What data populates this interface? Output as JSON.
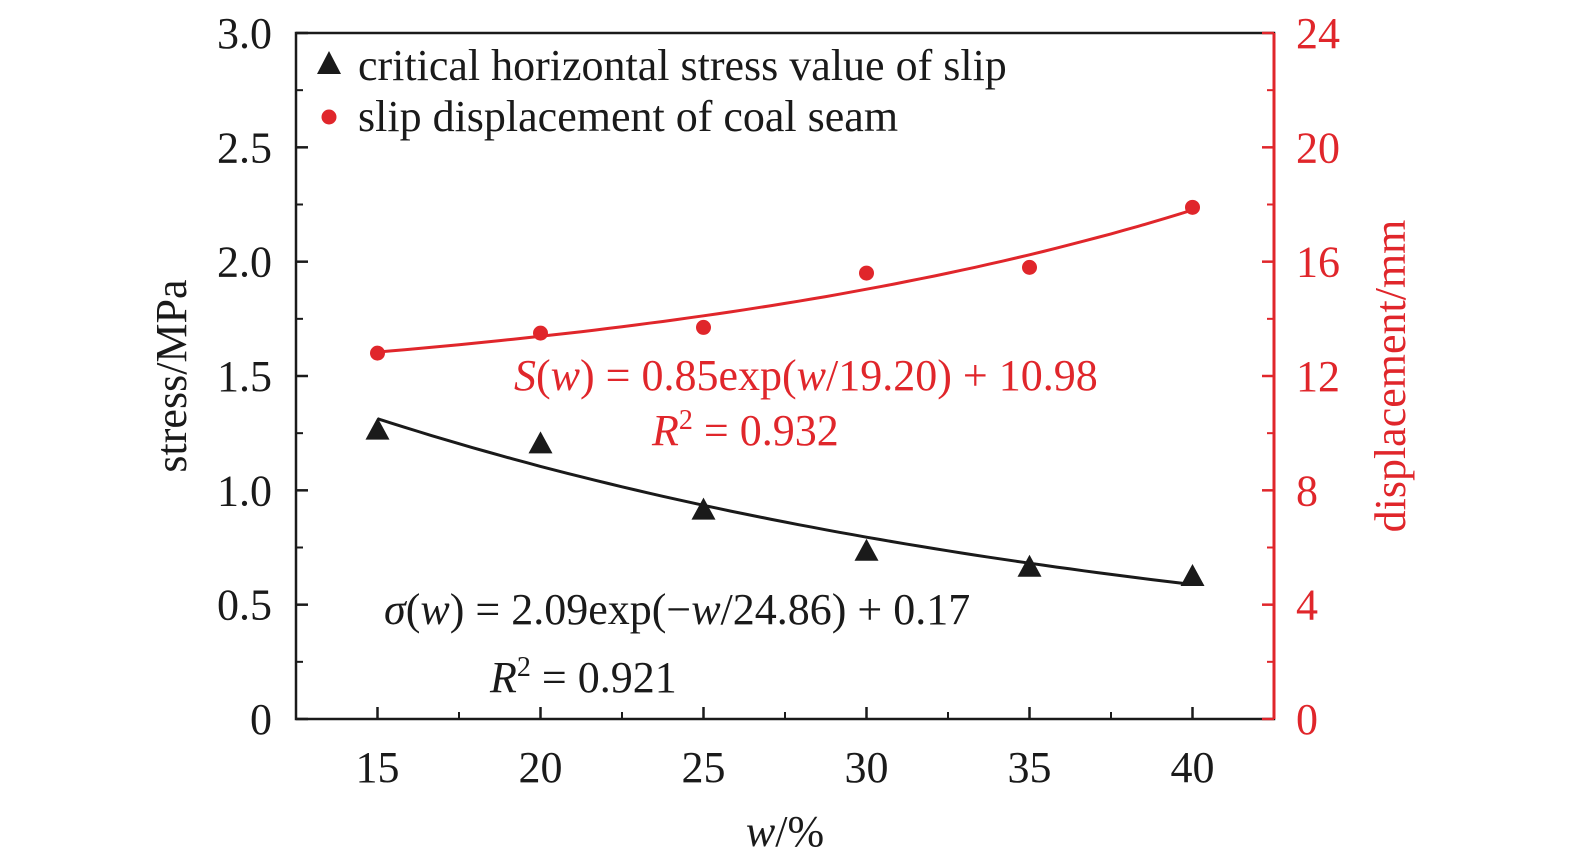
{
  "chart_data": {
    "type": "scatter",
    "title": "",
    "x": [
      15,
      20,
      25,
      30,
      35,
      40
    ],
    "xlabel": "w/%",
    "xlabel_var": "w",
    "xlabel_unit": "/%",
    "xlim": [
      12.5,
      42.5
    ],
    "xticks": [
      "15",
      "20",
      "25",
      "30",
      "35",
      "40"
    ],
    "ylabel": "stress/MPa",
    "ylim": [
      0,
      3.0
    ],
    "yticks": [
      "0",
      "0.5",
      "1.0",
      "1.5",
      "2.0",
      "2.5",
      "3.0"
    ],
    "y2label": "displacement/mm",
    "y2lim": [
      0,
      24
    ],
    "y2ticks": [
      "0",
      "4",
      "8",
      "12",
      "16",
      "20",
      "24"
    ],
    "grid": false,
    "legend_position": "top-left",
    "colors": {
      "stress": "#1a1a1a",
      "displacement": "#e0262b"
    },
    "series": [
      {
        "name": "critical horizontal stress value of slip",
        "axis": "left",
        "marker": "triangle",
        "values": [
          1.27,
          1.21,
          0.92,
          0.74,
          0.67,
          0.63
        ],
        "fit": {
          "a": 2.09,
          "b": -24.86,
          "c": 0.17
        }
      },
      {
        "name": "slip displacement of coal seam",
        "axis": "right",
        "marker": "circle",
        "values": [
          12.8,
          13.5,
          13.7,
          15.6,
          15.8,
          17.9
        ],
        "fit": {
          "a": 0.85,
          "b": 19.2,
          "c": 10.98
        }
      }
    ],
    "annotations": {
      "displacement_fit": {
        "equation_var": "S",
        "equation_arg": "w",
        "equation_body": " = 0.85exp(",
        "equation_var2": "w",
        "equation_tail": "/19.20) + 10.98",
        "r2_var": "R",
        "r2_sup": "2",
        "r2_value": " = 0.932"
      },
      "stress_fit": {
        "equation_var": "σ",
        "equation_arg": "w",
        "equation_body": " = 2.09exp(−",
        "equation_var2": "w",
        "equation_tail": "/24.86) + 0.17",
        "r2_var": "R",
        "r2_sup": "2",
        "r2_value": " = 0.921"
      }
    }
  }
}
